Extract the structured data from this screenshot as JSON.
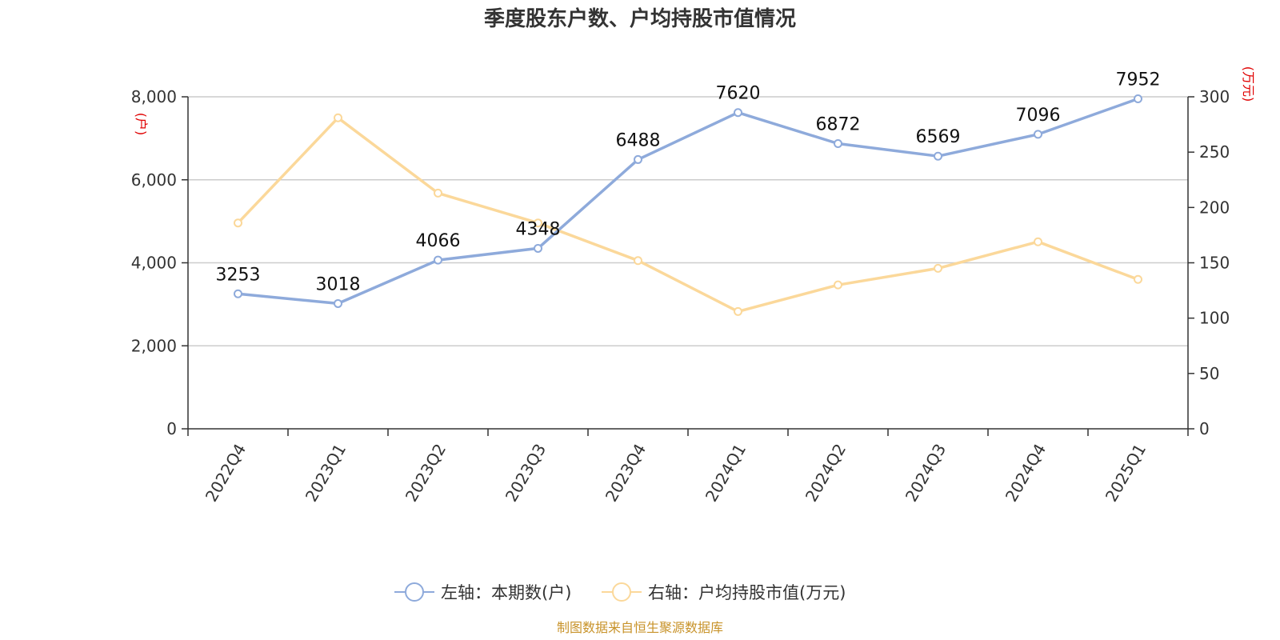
{
  "chart_data": {
    "type": "line",
    "title": "季度股东户数、户均持股市值情况",
    "categories": [
      "2022Q4",
      "2023Q1",
      "2023Q2",
      "2023Q3",
      "2023Q4",
      "2024Q1",
      "2024Q2",
      "2024Q3",
      "2024Q4",
      "2025Q1"
    ],
    "y_left": {
      "unit": "(户)",
      "ylim": [
        0,
        8000
      ],
      "ticks": [
        0,
        2000,
        4000,
        6000,
        8000
      ],
      "tick_labels": [
        "0",
        "2,000",
        "4,000",
        "6,000",
        "8,000"
      ]
    },
    "y_right": {
      "unit": "(万元)",
      "ylim": [
        0,
        300
      ],
      "ticks": [
        0,
        50,
        100,
        150,
        200,
        250,
        300
      ],
      "tick_labels": [
        "0",
        "50",
        "100",
        "150",
        "200",
        "250",
        "300"
      ]
    },
    "series": [
      {
        "name": "左轴：本期数(户)",
        "axis": "left",
        "color": "#8eaadb",
        "values": [
          3253,
          3018,
          4066,
          4348,
          6488,
          7620,
          6872,
          6569,
          7096,
          7952
        ],
        "data_labels": [
          "3253",
          "3018",
          "4066",
          "4348",
          "6488",
          "7620",
          "6872",
          "6569",
          "7096",
          "7952"
        ]
      },
      {
        "name": "右轴：户均持股市值(万元)",
        "axis": "right",
        "color": "#fbd89a",
        "values": [
          186,
          281,
          213,
          186,
          152,
          106,
          130,
          145,
          169,
          135
        ]
      }
    ],
    "grid": true,
    "legend_position": "bottom-center",
    "source": "制图数据来自恒生聚源数据库"
  }
}
